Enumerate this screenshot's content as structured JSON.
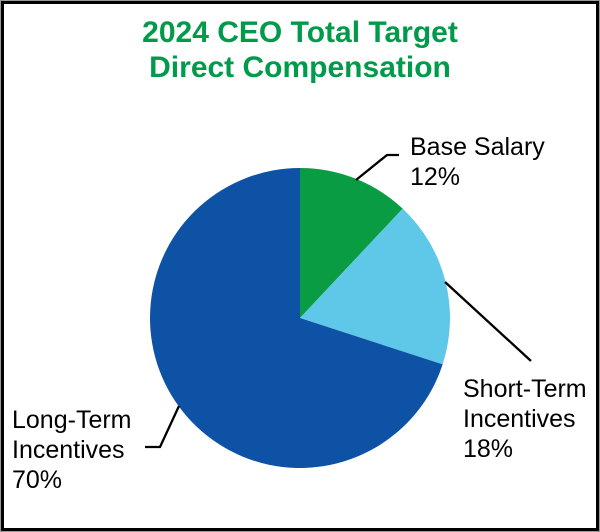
{
  "frame": {
    "border_color": "#000000"
  },
  "chart_data": {
    "type": "pie",
    "title": "2024 CEO Total Target\nDirect Compensation",
    "title_color": "#009B4A",
    "start_angle": "top",
    "direction": "clockwise",
    "legend": "none",
    "label_color": "#000000",
    "leader_line_color": "#000000",
    "slices": [
      {
        "label": "Base Salary",
        "value_pct": 12,
        "color": "#099C43",
        "display": "Base Salary\n12%"
      },
      {
        "label": "Short-Term Incentives",
        "value_pct": 18,
        "color": "#5FC8E9",
        "display": "Short-Term\nIncentives\n18%"
      },
      {
        "label": "Long-Term Incentives",
        "value_pct": 70,
        "color": "#0E52A6",
        "display": "Long-Term\nIncentives\n70%"
      }
    ]
  }
}
